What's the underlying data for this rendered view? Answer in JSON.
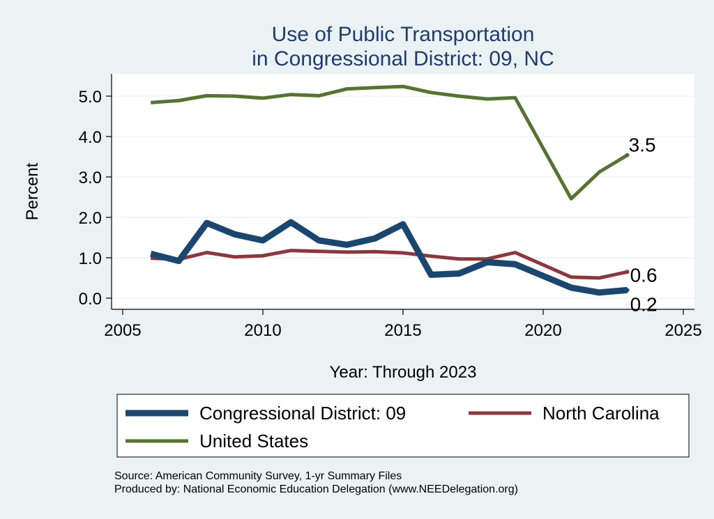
{
  "colors": {
    "background": "#eaf2f3",
    "plot_background": "#ffffff",
    "grid": "#eaf2f3",
    "title": "#1f3b6f"
  },
  "chart_data": {
    "type": "line",
    "title": [
      "Use of Public Transportation",
      "in Congressional District: 09, NC"
    ],
    "xlabel": "Year: Through 2023",
    "ylabel": "Percent",
    "xlim": [
      2005,
      2025
    ],
    "ylim": [
      0,
      5.3
    ],
    "xticks": [
      2005,
      2010,
      2015,
      2020,
      2025
    ],
    "yticks": [
      0,
      1,
      2,
      3,
      4,
      5
    ],
    "ytick_labels": [
      "0.0",
      "1.0",
      "2.0",
      "3.0",
      "4.0",
      "5.0"
    ],
    "grid": true,
    "legend_position": "bottom",
    "x": [
      2006,
      2007,
      2008,
      2009,
      2010,
      2011,
      2012,
      2013,
      2014,
      2015,
      2016,
      2017,
      2018,
      2019,
      2021,
      2022,
      2023
    ],
    "series": [
      {
        "name": "Congressional District: 09",
        "color": "#1a476f",
        "line_width": "thick",
        "values": [
          1.1,
          0.92,
          1.86,
          1.58,
          1.43,
          1.88,
          1.43,
          1.32,
          1.48,
          1.83,
          0.58,
          0.61,
          0.89,
          0.84,
          0.26,
          0.14,
          0.2
        ],
        "end_label": "0.2"
      },
      {
        "name": "North Carolina",
        "color": "#90353b",
        "line_width": "medium",
        "values": [
          0.99,
          0.96,
          1.13,
          1.02,
          1.05,
          1.18,
          1.16,
          1.14,
          1.15,
          1.12,
          1.04,
          0.97,
          0.97,
          1.13,
          0.52,
          0.5,
          0.65
        ],
        "end_label": "0.6"
      },
      {
        "name": "United States",
        "color": "#55752f",
        "line_width": "medium",
        "values": [
          4.84,
          4.89,
          5.01,
          5.0,
          4.95,
          5.04,
          5.01,
          5.18,
          5.21,
          5.24,
          5.09,
          5.0,
          4.93,
          4.96,
          2.46,
          3.12,
          3.54
        ],
        "end_label": "3.5"
      }
    ],
    "notes": [
      "Source: American Community Survey, 1-yr Summary Files",
      "Produced by: National Economic Education Delegation (www.NEEDelegation.org)"
    ]
  }
}
